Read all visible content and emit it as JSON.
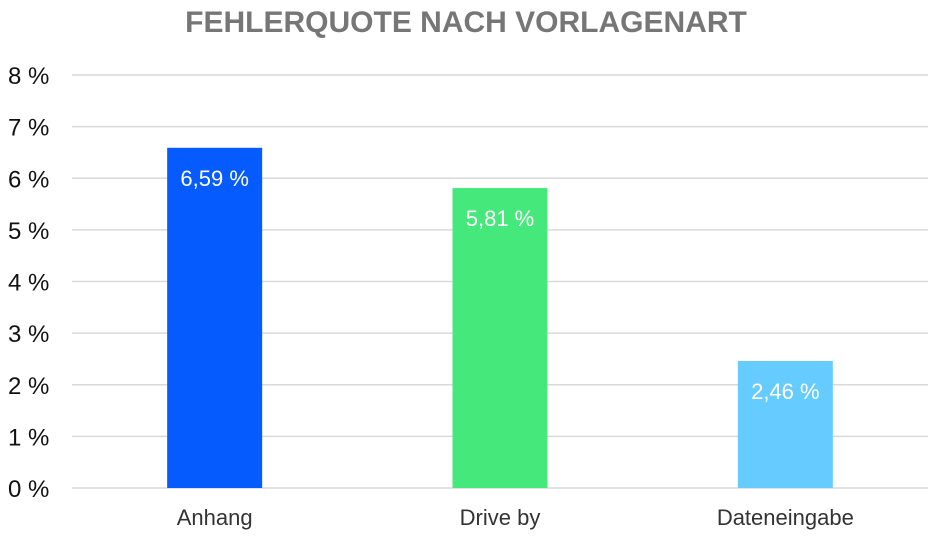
{
  "chart_data": {
    "type": "bar",
    "title": "FEHLERQUOTE NACH VORLAGENART",
    "xlabel": "",
    "ylabel": "",
    "categories": [
      "Anhang",
      "Drive by",
      "Dateneingabe"
    ],
    "values": [
      6.59,
      5.81,
      2.46
    ],
    "value_labels": [
      "6,59 %",
      "5,81 %",
      "2,46 %"
    ],
    "colors": [
      "#065BFF",
      "#45E87A",
      "#66CCFF"
    ],
    "ylim": [
      0,
      8
    ],
    "yticks": [
      0,
      1,
      2,
      3,
      4,
      5,
      6,
      7,
      8
    ],
    "ytick_labels": [
      "0 %",
      "1 %",
      "2 %",
      "3 %",
      "4 %",
      "5 %",
      "6 %",
      "7 %",
      "8 %"
    ],
    "grid": true,
    "legend": "none"
  }
}
